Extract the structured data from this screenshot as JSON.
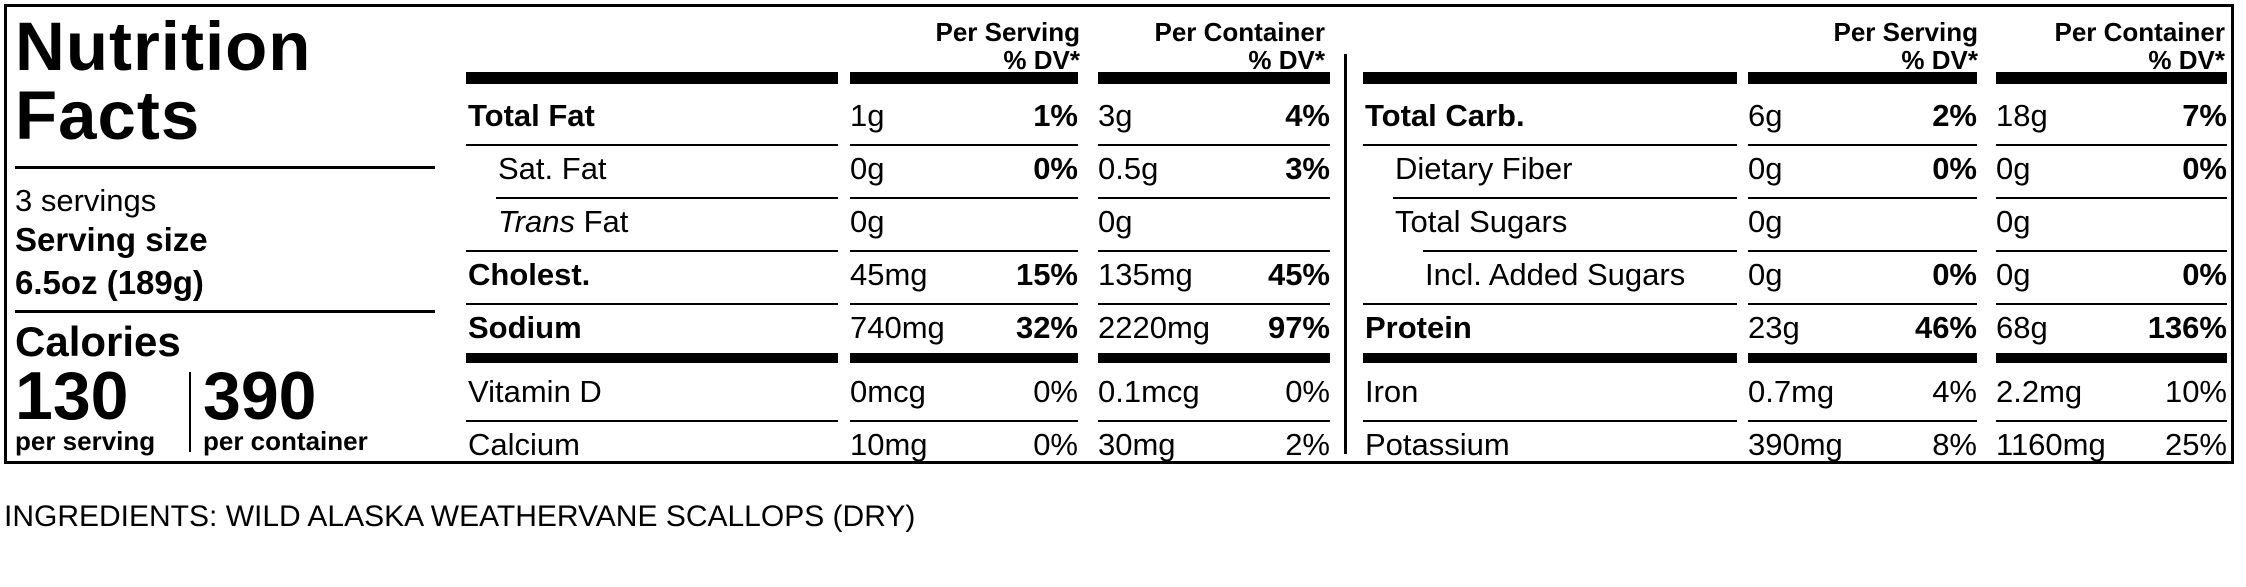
{
  "title_line1": "Nutrition",
  "title_line2": "Facts",
  "servings": "3 servings",
  "serving_size_label": "Serving size",
  "serving_size_value": "6.5oz (189g)",
  "calories_label": "Calories",
  "calories_per_serving": "130",
  "calories_per_container": "390",
  "per_serving_label": "per serving",
  "per_container_label": "per container",
  "col_headers": {
    "per_serving": "Per Serving",
    "per_container": "Per Container",
    "dv": "% DV*"
  },
  "left_rows": [
    {
      "name": "Total Fat",
      "bold": true,
      "indent": 0,
      "ps": "1g",
      "ps_dv": "1%",
      "pc": "3g",
      "pc_dv": "4%"
    },
    {
      "name": "Sat. Fat",
      "bold": false,
      "indent": 1,
      "ps": "0g",
      "ps_dv": "0%",
      "pc": "0.5g",
      "pc_dv": "3%"
    },
    {
      "name_italic": "Trans",
      "name": " Fat",
      "bold": false,
      "indent": 1,
      "ps": "0g",
      "ps_dv": "",
      "pc": "0g",
      "pc_dv": ""
    },
    {
      "name": "Cholest.",
      "bold": true,
      "indent": 0,
      "ps": "45mg",
      "ps_dv": "15%",
      "pc": "135mg",
      "pc_dv": "45%"
    },
    {
      "name": "Sodium",
      "bold": true,
      "indent": 0,
      "ps": "740mg",
      "ps_dv": "32%",
      "pc": "2220mg",
      "pc_dv": "97%"
    },
    {
      "name": "Vitamin D",
      "bold": false,
      "indent": 0,
      "ps": "0mcg",
      "ps_dv": "0%",
      "pc": "0.1mcg",
      "pc_dv": "0%"
    },
    {
      "name": "Calcium",
      "bold": false,
      "indent": 0,
      "ps": "10mg",
      "ps_dv": "0%",
      "pc": "30mg",
      "pc_dv": "2%"
    }
  ],
  "right_rows": [
    {
      "name": "Total Carb.",
      "bold": true,
      "indent": 0,
      "ps": "6g",
      "ps_dv": "2%",
      "pc": "18g",
      "pc_dv": "7%"
    },
    {
      "name": "Dietary Fiber",
      "bold": false,
      "indent": 1,
      "ps": "0g",
      "ps_dv": "0%",
      "pc": "0g",
      "pc_dv": "0%"
    },
    {
      "name": "Total Sugars",
      "bold": false,
      "indent": 1,
      "ps": "0g",
      "ps_dv": "",
      "pc": "0g",
      "pc_dv": ""
    },
    {
      "name": "Incl. Added Sugars",
      "bold": false,
      "indent": 2,
      "ps": "0g",
      "ps_dv": "0%",
      "pc": "0g",
      "pc_dv": "0%"
    },
    {
      "name": "Protein",
      "bold": true,
      "indent": 0,
      "ps": "23g",
      "ps_dv": "46%",
      "pc": "68g",
      "pc_dv": "136%"
    },
    {
      "name": "Iron",
      "bold": false,
      "indent": 0,
      "ps": "0.7mg",
      "ps_dv": "4%",
      "pc": "2.2mg",
      "pc_dv": "10%"
    },
    {
      "name": "Potassium",
      "bold": false,
      "indent": 0,
      "ps": "390mg",
      "ps_dv": "8%",
      "pc": "1160mg",
      "pc_dv": "25%"
    }
  ],
  "ingredients": "INGREDIENTS: WILD ALASKA WEATHERVANE SCALLOPS (DRY)"
}
